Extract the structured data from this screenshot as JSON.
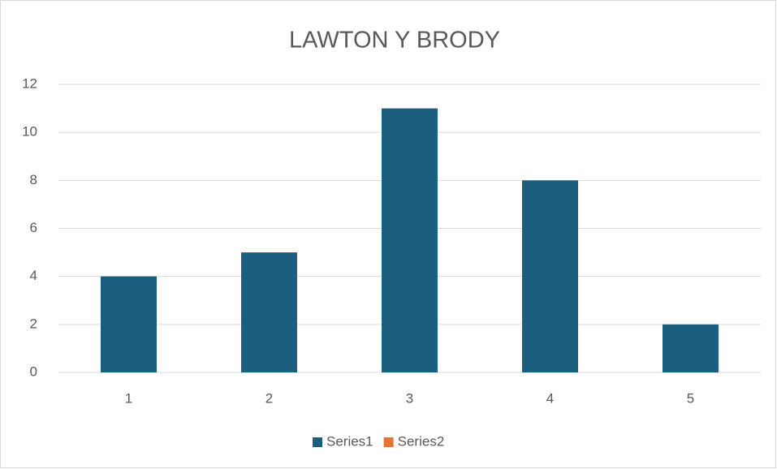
{
  "chart_data": {
    "type": "bar",
    "title": "LAWTON Y BRODY",
    "categories": [
      "1",
      "2",
      "3",
      "4",
      "5"
    ],
    "series": [
      {
        "name": "Series1",
        "color": "#1b5e7e",
        "values": [
          4,
          5,
          11,
          8,
          2
        ]
      },
      {
        "name": "Series2",
        "color": "#e97132",
        "values": [
          null,
          null,
          null,
          null,
          null
        ]
      }
    ],
    "ylim": [
      0,
      12
    ],
    "yticks": [
      0,
      2,
      4,
      6,
      8,
      10,
      12
    ],
    "grid": true,
    "legend": "bottom"
  }
}
